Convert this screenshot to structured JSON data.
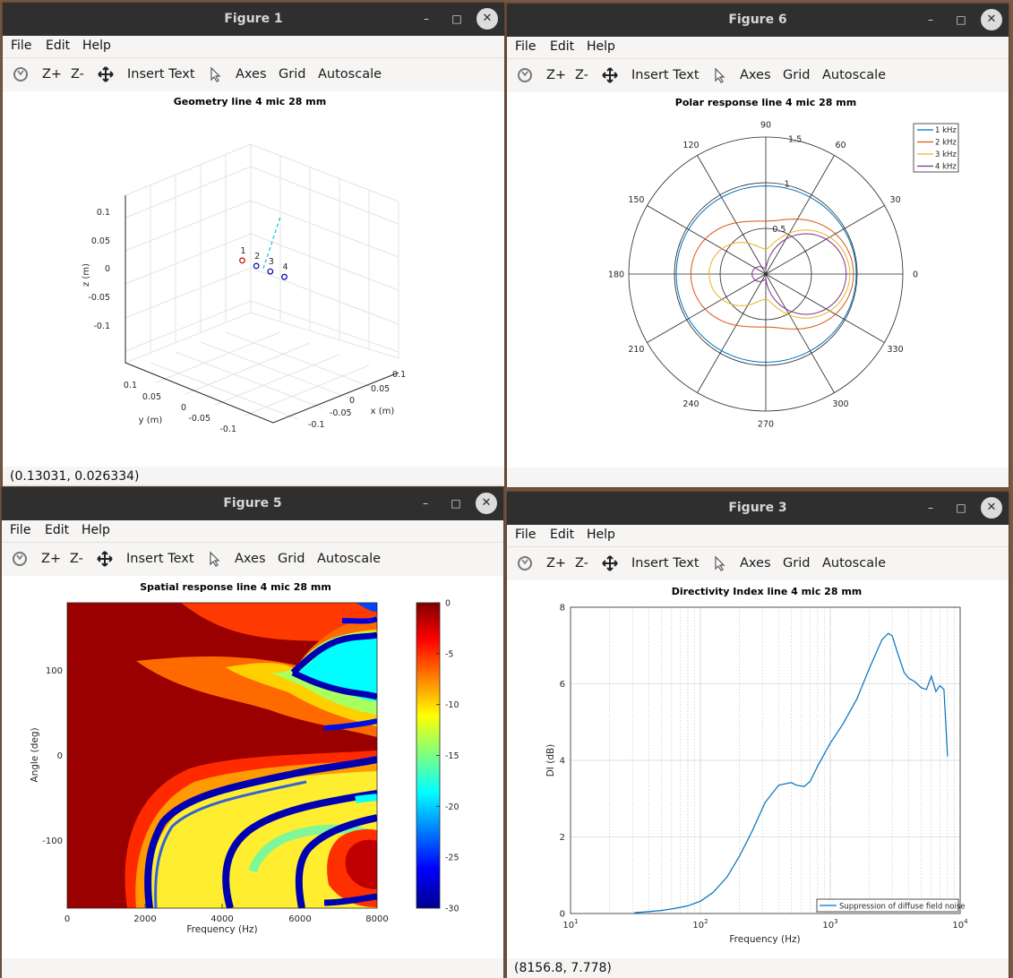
{
  "menus": {
    "file": "File",
    "edit": "Edit",
    "help": "Help"
  },
  "toolbar": {
    "rotate_icon": "rotate-icon",
    "zoom_in": "Z+",
    "zoom_out": "Z-",
    "pan_icon": "pan-icon",
    "insert_text": "Insert Text",
    "select_icon": "select-pointer-icon",
    "axes": "Axes",
    "grid": "Grid",
    "autoscale": "Autoscale"
  },
  "windows": {
    "fig1": {
      "title": "Figure 1",
      "status": "(0.13031, 0.026334)"
    },
    "fig6": {
      "title": "Figure 6",
      "status": ""
    },
    "fig5": {
      "title": "Figure 5",
      "status": ""
    },
    "fig3": {
      "title": "Figure 3",
      "status": "(8156.8, 7.778)"
    }
  },
  "window_controls": {
    "minimize": "–",
    "maximize": "□",
    "close": "✕"
  },
  "chart_data": [
    {
      "type": "scatter",
      "title": "Geometry line 4 mic 28 mm",
      "xlabel": "x (m)",
      "ylabel": "y (m)",
      "zlabel": "z (m)",
      "xlim": [
        -0.12,
        0.12
      ],
      "ylim": [
        -0.12,
        0.12
      ],
      "zlim": [
        -0.12,
        0.12
      ],
      "x_ticks": [
        "-0.1",
        "-0.05",
        "0",
        "0.05",
        "0.1"
      ],
      "y_ticks": [
        "0.1",
        "0.05",
        "0",
        "-0.05",
        "-0.1"
      ],
      "z_ticks": [
        "0.1",
        "0.05",
        "0",
        "-0.05",
        "-0.1"
      ],
      "points": [
        {
          "label": "1",
          "x": -0.042,
          "y": 0,
          "z": 0,
          "color": "#cc0000"
        },
        {
          "label": "2",
          "x": -0.014,
          "y": 0,
          "z": 0,
          "color": "#0000aa"
        },
        {
          "label": "3",
          "x": 0.014,
          "y": 0,
          "z": 0,
          "color": "#0000aa"
        },
        {
          "label": "4",
          "x": 0.042,
          "y": 0,
          "z": 0,
          "color": "#0000aa"
        }
      ],
      "look_direction_line": {
        "color": "#00c8e0",
        "style": "dashed"
      },
      "grid": true
    },
    {
      "type": "polar",
      "title": "Polar response line 4 mic 28 mm",
      "angle_ticks": [
        "0",
        "30",
        "60",
        "90",
        "120",
        "150",
        "180",
        "210",
        "240",
        "270",
        "300",
        "330"
      ],
      "radial_ticks": [
        "0.5",
        "1",
        "1.5"
      ],
      "rlim": [
        0,
        1.5
      ],
      "legend_position": "top-right",
      "series": [
        {
          "name": "1 kHz",
          "color": "#0072bd",
          "front": 0.99,
          "back": 0.98
        },
        {
          "name": "2 kHz",
          "color": "#d95319",
          "front": 0.96,
          "back": 0.82
        },
        {
          "name": "3 kHz",
          "color": "#edb120",
          "front": 0.92,
          "back": 0.62
        },
        {
          "name": "4 kHz",
          "color": "#7e2f8e",
          "front": 0.88,
          "back": 0.15
        }
      ]
    },
    {
      "type": "heatmap",
      "title": "Spatial response line 4 mic 28 mm",
      "xlabel": "Frequency (Hz)",
      "ylabel": "Angle (deg)",
      "xlim": [
        0,
        8000
      ],
      "ylim": [
        -180,
        180
      ],
      "x_ticks": [
        "0",
        "2000",
        "4000",
        "6000",
        "8000"
      ],
      "y_ticks": [
        "100",
        "0",
        "-100"
      ],
      "colorbar": {
        "ticks": [
          "0",
          "-5",
          "-10",
          "-15",
          "-20",
          "-25",
          "-30"
        ],
        "range": [
          -30,
          0
        ],
        "colormap": "jet"
      }
    },
    {
      "type": "line",
      "title": "Directivity Index line 4 mic 28 mm",
      "xlabel": "Frequency (Hz)",
      "ylabel": "DI (dB)",
      "x_scale": "log",
      "xlim": [
        10,
        10000
      ],
      "ylim": [
        0,
        8
      ],
      "x_ticks": [
        {
          "base": "10",
          "exp": "1"
        },
        {
          "base": "10",
          "exp": "2"
        },
        {
          "base": "10",
          "exp": "3"
        },
        {
          "base": "10",
          "exp": "4"
        }
      ],
      "y_ticks": [
        "0",
        "2",
        "4",
        "6",
        "8"
      ],
      "grid": true,
      "legend_position": "bottom-right",
      "series": [
        {
          "name": "Suppression of diffuse field noise",
          "color": "#0072bd",
          "x": [
            31,
            40,
            50,
            63,
            80,
            100,
            125,
            160,
            200,
            250,
            315,
            400,
            500,
            550,
            630,
            700,
            800,
            1000,
            1250,
            1600,
            2000,
            2500,
            2800,
            3000,
            3300,
            3700,
            4000,
            4500,
            5000,
            5500,
            6000,
            6500,
            7000,
            7500,
            8000
          ],
          "y": [
            0.02,
            0.05,
            0.08,
            0.13,
            0.2,
            0.32,
            0.55,
            0.95,
            1.5,
            2.15,
            2.9,
            3.35,
            3.42,
            3.35,
            3.32,
            3.45,
            3.85,
            4.45,
            4.95,
            5.6,
            6.4,
            7.15,
            7.32,
            7.25,
            6.8,
            6.3,
            6.15,
            6.05,
            5.9,
            5.85,
            6.2,
            5.8,
            5.95,
            5.85,
            4.1
          ]
        }
      ]
    }
  ]
}
